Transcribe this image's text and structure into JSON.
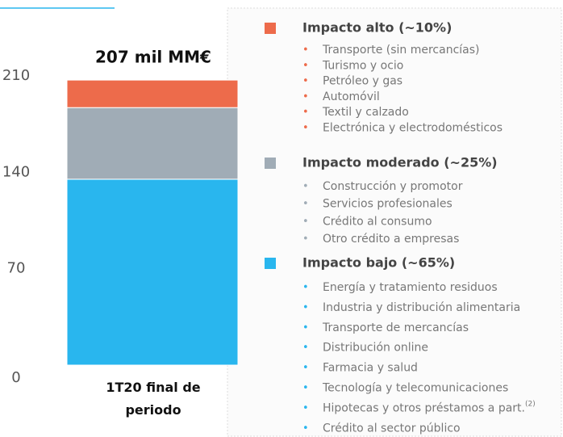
{
  "chart_data": {
    "type": "stacked_bar",
    "title": "207 mil MM€",
    "categories": [
      "1T20 final de periodo"
    ],
    "ylim": [
      0,
      210
    ],
    "yticks": [
      0,
      70,
      140,
      210
    ],
    "series": [
      {
        "name": "Impacto bajo (~65%)",
        "color": "#29b6ee",
        "values": [
          135
        ],
        "items": [
          "Energía y tratamiento residuos",
          "Industria y distribución alimentaria",
          "Transporte de mercancías",
          "Distribución online",
          "Farmacia y salud",
          "Tecnología y telecomunicaciones",
          {
            "text": "Hipotecas y otros préstamos a part.",
            "sup": "(2)"
          },
          "Crédito al sector público"
        ]
      },
      {
        "name": "Impacto moderado (~25%)",
        "color": "#a0acb6",
        "values": [
          52
        ],
        "items": [
          "Construcción y promotor",
          "Servicios profesionales",
          "Crédito al consumo",
          "Otro crédito a empresas"
        ]
      },
      {
        "name": "Impacto alto (~10%)",
        "color": "#ed6b4b",
        "values": [
          20
        ],
        "items": [
          "Transporte (sin mercancías)",
          "Turismo y ocio",
          "Petróleo y gas",
          "Automóvil",
          "Textil y calzado",
          "Electrónica y electrodomésticos"
        ]
      }
    ]
  }
}
